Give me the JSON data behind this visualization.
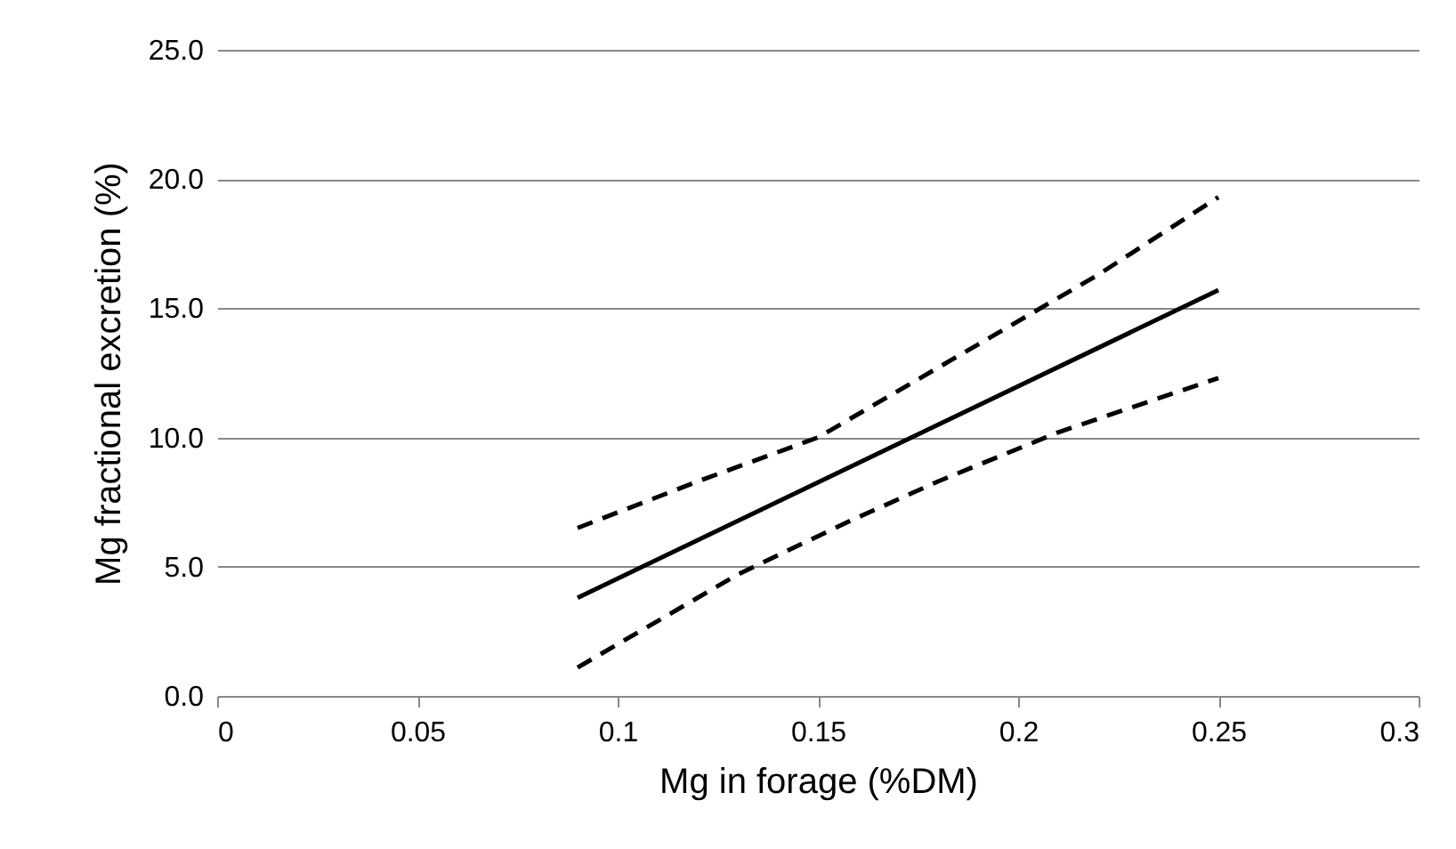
{
  "chart_data": {
    "type": "line",
    "xlabel": "Mg in forage (%DM)",
    "ylabel": "Mg fractional excretion (%)",
    "xlim": [
      0,
      0.3
    ],
    "xticks": [
      0,
      0.05,
      0.1,
      0.15,
      0.2,
      0.25,
      0.3
    ],
    "ylim": [
      0,
      25
    ],
    "yticks": [
      {
        "value": 0,
        "label": "0.0"
      },
      {
        "value": 5,
        "label": "5.0"
      },
      {
        "value": 10,
        "label": "10.0"
      },
      {
        "value": 15,
        "label": "15.0"
      },
      {
        "value": 20,
        "label": "20.0"
      },
      {
        "value": 25,
        "label": "25.0"
      }
    ],
    "grid": "y",
    "marker": "none",
    "series": [
      {
        "color": "#000000",
        "line_style": "solid",
        "x": [
          0.09,
          0.25
        ],
        "values": [
          3.8,
          15.7
        ]
      },
      {
        "color": "#000000",
        "line_style": "dashed",
        "x": [
          0.09,
          0.12,
          0.15,
          0.19,
          0.22,
          0.25
        ],
        "values": [
          6.5,
          8.3,
          10.0,
          13.6,
          16.3,
          19.3
        ]
      },
      {
        "color": "#000000",
        "line_style": "dashed",
        "x": [
          0.09,
          0.13,
          0.157,
          0.18,
          0.21,
          0.25
        ],
        "values": [
          1.1,
          4.7,
          6.7,
          8.3,
          10.2,
          12.3
        ]
      }
    ]
  }
}
